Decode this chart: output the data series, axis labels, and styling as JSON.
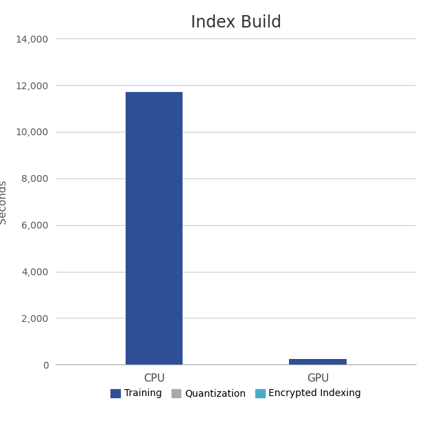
{
  "title": "Index Build",
  "categories": [
    "CPU",
    "GPU"
  ],
  "training_values": [
    11700,
    250
  ],
  "quantization_values": [
    0,
    0
  ],
  "encrypted_indexing_values": [
    0,
    0
  ],
  "training_color": "#2E5096",
  "quantization_color": "#A9A9A9",
  "encrypted_indexing_color": "#4BACC6",
  "ylabel": "Seconds",
  "ylim": [
    0,
    14000
  ],
  "yticks": [
    0,
    2000,
    4000,
    6000,
    8000,
    10000,
    12000,
    14000
  ],
  "ytick_labels": [
    "0",
    "2,000",
    "4,000",
    "6,000",
    "8,000",
    "10,000",
    "12,000",
    "14,000"
  ],
  "background_color": "#FFFFFF",
  "grid_color": "#CCCCCC",
  "title_fontsize": 17,
  "axis_fontsize": 11,
  "tick_fontsize": 10,
  "legend_fontsize": 10,
  "bar_width": 0.35
}
